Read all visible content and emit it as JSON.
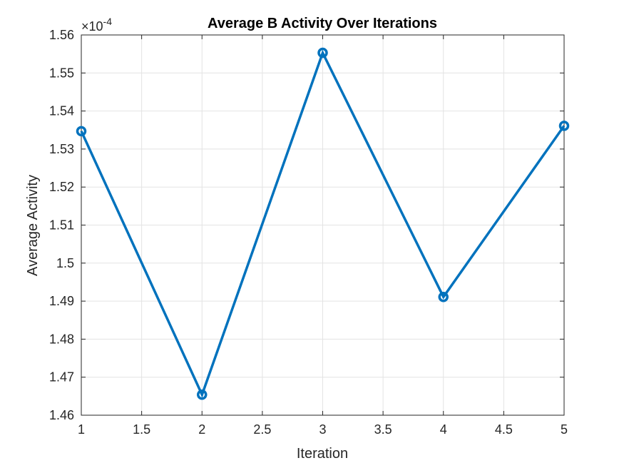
{
  "chart_data": {
    "type": "line",
    "title": "Average B Activity Over Iterations",
    "xlabel": "Iteration",
    "ylabel": "Average Activity",
    "y_exponent_label": "×10",
    "y_exponent_value": "-4",
    "xlim": [
      1,
      5
    ],
    "ylim": [
      1.46,
      1.56
    ],
    "x_ticks": [
      1,
      1.5,
      2,
      2.5,
      3,
      3.5,
      4,
      4.5,
      5
    ],
    "x_tick_labels": [
      "1",
      "1.5",
      "2",
      "2.5",
      "3",
      "3.5",
      "4",
      "4.5",
      "5"
    ],
    "y_ticks": [
      1.46,
      1.47,
      1.48,
      1.49,
      1.5,
      1.51,
      1.52,
      1.53,
      1.54,
      1.55,
      1.56
    ],
    "y_tick_labels": [
      "1.46",
      "1.47",
      "1.48",
      "1.49",
      "1.5",
      "1.51",
      "1.52",
      "1.53",
      "1.54",
      "1.55",
      "1.56"
    ],
    "grid": true,
    "series": [
      {
        "x": [
          1,
          2,
          3,
          4,
          5
        ],
        "values": [
          1.5347,
          1.4654,
          1.5553,
          1.4911,
          1.5361
        ],
        "color": "#0072BD",
        "marker": "circle"
      }
    ]
  }
}
